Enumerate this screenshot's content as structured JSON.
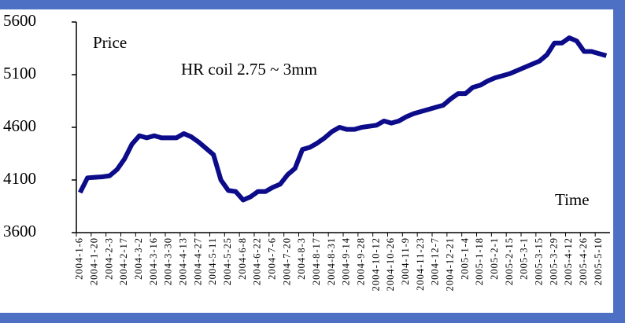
{
  "chart_data": {
    "type": "line",
    "annotations": [
      "Price",
      "HR coil 2.75 ~ 3mm",
      "Time"
    ],
    "categories": [
      "2004-1-6",
      null,
      "2004-1-20",
      null,
      "2004-2-3",
      null,
      "2004-2-17",
      null,
      "2004-3-2",
      null,
      "2004-3-16",
      null,
      "2004-3-30",
      null,
      "2004-4-13",
      null,
      "2004-4-27",
      null,
      "2004-5-11",
      null,
      "2004-5-25",
      null,
      "2004-6-8",
      null,
      "2004-6-22",
      null,
      "2004-7-6",
      null,
      "2004-7-20",
      null,
      "2004-8-3",
      null,
      "2004-8-17",
      null,
      "2004-8-31",
      null,
      "2004-9-14",
      null,
      "2004-9-28",
      null,
      "2004-10-12",
      null,
      "2004-10-26",
      null,
      "2004-11-9",
      null,
      "2004-11-23",
      null,
      "2004-12-7",
      null,
      "2004-12-21",
      null,
      "2005-1-4",
      null,
      "2005-1-18",
      null,
      "2005-2-1",
      null,
      "2005-2-15",
      null,
      "2005-3-1",
      null,
      "2005-3-15",
      null,
      "2005-3-29",
      null,
      "2005-4-12",
      null,
      "2005-4-26",
      null,
      "2005-5-10",
      null
    ],
    "series": [
      {
        "name": "Price",
        "color": "#0c0c8a",
        "values": [
          3980,
          4120,
          4125,
          4130,
          4140,
          4200,
          4300,
          4440,
          4520,
          4500,
          4520,
          4500,
          4500,
          4500,
          4540,
          4510,
          4460,
          4400,
          4340,
          4100,
          4000,
          3990,
          3910,
          3940,
          3990,
          3990,
          4030,
          4060,
          4150,
          4210,
          4390,
          4410,
          4450,
          4500,
          4560,
          4600,
          4580,
          4580,
          4600,
          4610,
          4620,
          4660,
          4640,
          4660,
          4700,
          4730,
          4750,
          4770,
          4790,
          4810,
          4870,
          4920,
          4920,
          4980,
          5000,
          5040,
          5070,
          5090,
          5110,
          5140,
          5170,
          5200,
          5230,
          5290,
          5400,
          5400,
          5450,
          5420,
          5320,
          5320,
          5300,
          5280
        ]
      }
    ],
    "ylim": [
      3600,
      5600
    ],
    "yticks": [
      3600,
      4100,
      4600,
      5100,
      5600
    ],
    "grid": false
  }
}
